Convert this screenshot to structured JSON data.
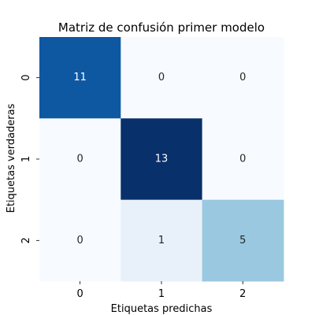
{
  "chart_data": {
    "type": "heatmap",
    "title": "Matriz de confusión primer modelo",
    "xlabel": "Etiquetas predichas",
    "ylabel": "Etiquetas verdaderas",
    "x_categories": [
      "0",
      "1",
      "2"
    ],
    "y_categories": [
      "0",
      "1",
      "2"
    ],
    "values": [
      [
        11,
        0,
        0
      ],
      [
        0,
        13,
        0
      ],
      [
        0,
        1,
        5
      ]
    ],
    "colormap": "Blues",
    "vmin": 0,
    "vmax": 13,
    "colorbar": false,
    "grid": false
  }
}
